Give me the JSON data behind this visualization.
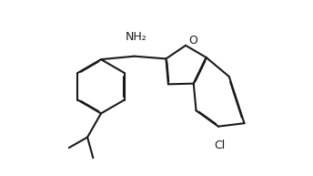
{
  "background_color": "#ffffff",
  "line_color": "#1a1a1a",
  "line_width": 1.5,
  "dbo": 0.018,
  "text_color": "#1a1a1a",
  "nh2_label": "NH₂",
  "o_label": "O",
  "cl_label": "Cl",
  "font_size": 9,
  "figw": 3.44,
  "figh": 1.93,
  "dpi": 100
}
